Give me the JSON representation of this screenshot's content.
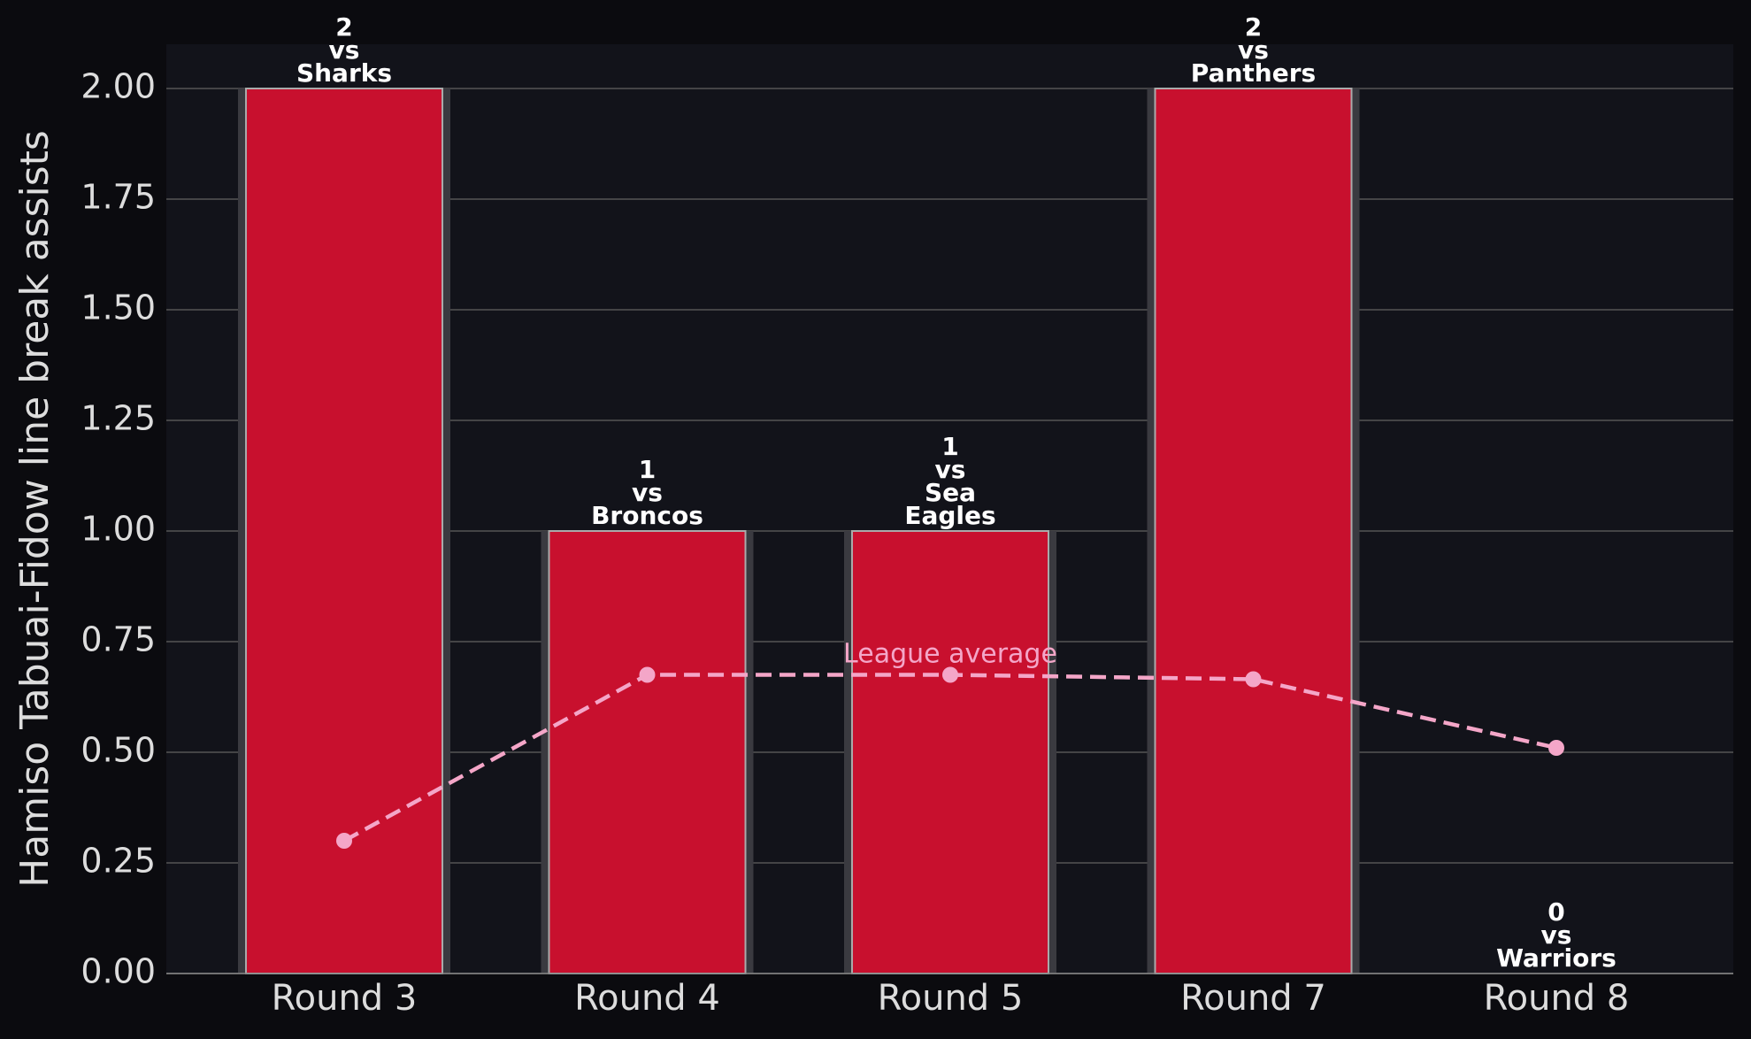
{
  "chart_data": {
    "type": "bar",
    "y_label": "Hamiso Tabuai-Fidow line break assists",
    "categories": [
      "Round 3",
      "Round 4",
      "Round 5",
      "Round 7",
      "Round 8"
    ],
    "values": [
      2,
      1,
      1,
      2,
      0
    ],
    "value_labels": [
      [
        "2",
        "vs",
        "Sharks"
      ],
      [
        "1",
        "vs",
        "Broncos"
      ],
      [
        "1",
        "vs",
        "Sea",
        "Eagles"
      ],
      [
        "2",
        "vs",
        "Panthers"
      ],
      [
        "0",
        "vs",
        "Warriors"
      ]
    ],
    "color": "#c8102e",
    "line_series": {
      "name": "League average",
      "color": "#f4a6c8",
      "values": [
        0.3,
        0.675,
        0.675,
        0.665,
        0.51
      ]
    },
    "ylim": [
      0,
      2.1
    ],
    "yticks": [
      {
        "value": 0,
        "label": "0.00"
      },
      {
        "value": 0.25,
        "label": "0.25"
      },
      {
        "value": 0.5,
        "label": "0.50"
      },
      {
        "value": 0.75,
        "label": "0.75"
      },
      {
        "value": 1,
        "label": "1.00"
      },
      {
        "value": 1.25,
        "label": "1.25"
      },
      {
        "value": 1.5,
        "label": "1.50"
      },
      {
        "value": 1.75,
        "label": "1.75"
      },
      {
        "value": 2,
        "label": "2.00"
      }
    ],
    "grid": true
  }
}
